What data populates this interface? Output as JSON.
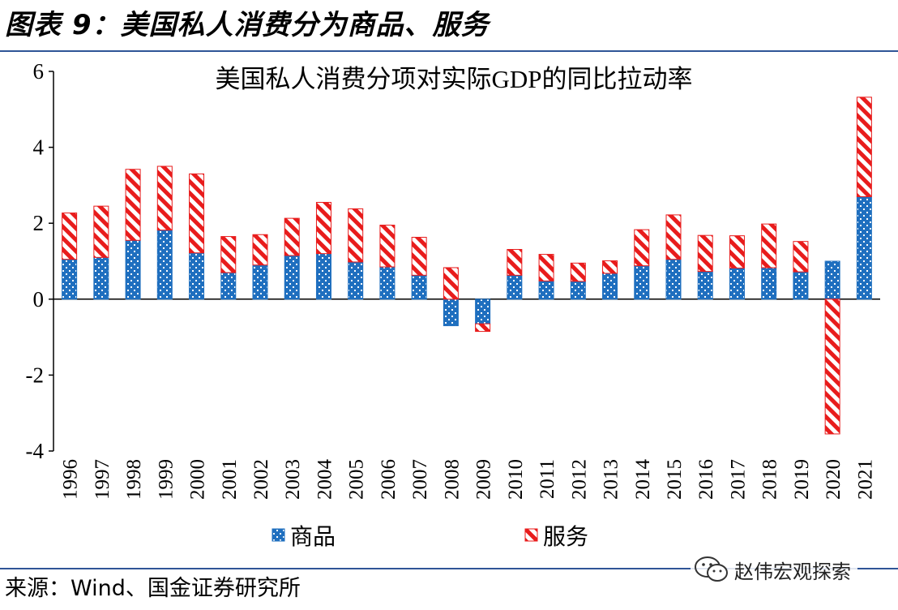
{
  "figure": {
    "title": "图表 9：美国私人消费分为商品、服务",
    "source": "来源：Wind、国金证券研究所",
    "watermark": "赵伟宏观探索"
  },
  "colors": {
    "goods": "#1f6fbf",
    "services": "#e81c1c",
    "rule": "#2f5597",
    "axis": "#000000"
  },
  "chart_data": {
    "type": "bar",
    "stacked": true,
    "title": "美国私人消费分项对实际GDP的同比拉动率",
    "xlabel": "",
    "ylabel": "",
    "ylim": [
      -4,
      6
    ],
    "yticks": [
      -4,
      -2,
      0,
      2,
      4,
      6
    ],
    "grid": false,
    "legend_position": "bottom",
    "categories": [
      "1996",
      "1997",
      "1998",
      "1999",
      "2000",
      "2001",
      "2002",
      "2003",
      "2004",
      "2005",
      "2006",
      "2007",
      "2008",
      "2009",
      "2010",
      "2011",
      "2012",
      "2013",
      "2014",
      "2015",
      "2016",
      "2017",
      "2018",
      "2019",
      "2020",
      "2021"
    ],
    "series": [
      {
        "name": "商品",
        "pattern": "dots",
        "values": [
          1.05,
          1.1,
          1.55,
          1.82,
          1.22,
          0.7,
          0.9,
          1.15,
          1.2,
          0.98,
          0.85,
          0.63,
          -0.7,
          -0.65,
          0.63,
          0.48,
          0.47,
          0.68,
          0.88,
          1.05,
          0.73,
          0.82,
          0.83,
          0.72,
          1.0,
          2.7
        ]
      },
      {
        "name": "服务",
        "pattern": "stripes",
        "values": [
          1.22,
          1.35,
          1.87,
          1.68,
          2.08,
          0.95,
          0.8,
          0.98,
          1.35,
          1.4,
          1.1,
          1.0,
          0.83,
          -0.2,
          0.68,
          0.7,
          0.48,
          0.33,
          0.95,
          1.17,
          0.95,
          0.85,
          1.15,
          0.8,
          -3.55,
          2.62
        ]
      }
    ]
  }
}
